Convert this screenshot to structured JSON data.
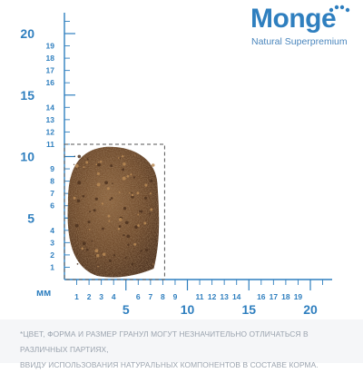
{
  "brand": {
    "wordmark": "Monge",
    "tagline": "Natural Superpremium",
    "color": "#2f7fbf"
  },
  "ruler": {
    "unit_label": "мм",
    "color": "#2f7fbf",
    "tick_color": "#2f7fbf",
    "major_label_color": "#2f7fbf",
    "minor_label_color": "#2f7fbf",
    "y_labels": [
      {
        "value": 1,
        "text": "1",
        "major": false
      },
      {
        "value": 2,
        "text": "2",
        "major": false
      },
      {
        "value": 3,
        "text": "3",
        "major": false
      },
      {
        "value": 4,
        "text": "4",
        "major": false
      },
      {
        "value": 5,
        "text": "5",
        "major": true
      },
      {
        "value": 6,
        "text": "6",
        "major": false
      },
      {
        "value": 7,
        "text": "7",
        "major": false
      },
      {
        "value": 8,
        "text": "8",
        "major": false
      },
      {
        "value": 9,
        "text": "9",
        "major": false
      },
      {
        "value": 10,
        "text": "10",
        "major": true
      },
      {
        "value": 11,
        "text": "11",
        "major": false
      },
      {
        "value": 12,
        "text": "12",
        "major": false
      },
      {
        "value": 13,
        "text": "13",
        "major": false
      },
      {
        "value": 14,
        "text": "14",
        "major": false
      },
      {
        "value": 15,
        "text": "15",
        "major": true
      },
      {
        "value": 16,
        "text": "16",
        "major": false
      },
      {
        "value": 17,
        "text": "17",
        "major": false
      },
      {
        "value": 18,
        "text": "18",
        "major": false
      },
      {
        "value": 19,
        "text": "19",
        "major": false
      },
      {
        "value": 20,
        "text": "20",
        "major": true
      }
    ],
    "x_labels": [
      {
        "value": 1,
        "text": "1",
        "major": false
      },
      {
        "value": 2,
        "text": "2",
        "major": false
      },
      {
        "value": 3,
        "text": "3",
        "major": false
      },
      {
        "value": 4,
        "text": "4",
        "major": false
      },
      {
        "value": 5,
        "text": "5",
        "major": true
      },
      {
        "value": 6,
        "text": "6",
        "major": false
      },
      {
        "value": 7,
        "text": "7",
        "major": false
      },
      {
        "value": 8,
        "text": "8",
        "major": false
      },
      {
        "value": 9,
        "text": "9",
        "major": false
      },
      {
        "value": 10,
        "text": "10",
        "major": true
      },
      {
        "value": 11,
        "text": "11",
        "major": false
      },
      {
        "value": 12,
        "text": "12",
        "major": false
      },
      {
        "value": 13,
        "text": "13",
        "major": false
      },
      {
        "value": 14,
        "text": "14",
        "major": false
      },
      {
        "value": 15,
        "text": "15",
        "major": true
      },
      {
        "value": 16,
        "text": "16",
        "major": false
      },
      {
        "value": 17,
        "text": "17",
        "major": false
      },
      {
        "value": 18,
        "text": "18",
        "major": false
      },
      {
        "value": 19,
        "text": "19",
        "major": false
      },
      {
        "value": 20,
        "text": "20",
        "major": true
      }
    ]
  },
  "kibble": {
    "width_mm": 8,
    "height_mm": 11,
    "fill_color": "#7a5332",
    "dark_color": "#4e3320",
    "light_color": "#b98a55"
  },
  "note": {
    "line1": "*ЦВЕТ, ФОРМА И РАЗМЕР ГРАНУЛ МОГУТ НЕЗНАЧИТЕЛЬНО ОТЛИЧАТЬСЯ В РАЗЛИЧНЫХ ПАРТИЯХ,",
    "line2": "ВВИДУ ИСПОЛЬЗОВАНИЯ НАТУРАЛЬНЫХ КОМПОНЕНТОВ В СОСТАВЕ КОРМА."
  }
}
